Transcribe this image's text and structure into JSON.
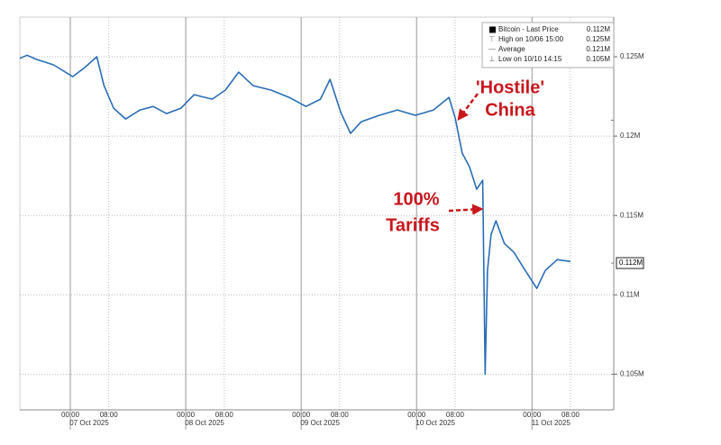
{
  "chart_data": {
    "type": "line",
    "x": [
      "2025-10-06T13:30",
      "2025-10-06T15:00",
      "2025-10-06T17:00",
      "2025-10-06T20:30",
      "2025-10-07T00:30",
      "2025-10-07T03:00",
      "2025-10-07T05:30",
      "2025-10-07T07:00",
      "2025-10-07T09:00",
      "2025-10-07T11:30",
      "2025-10-07T14:30",
      "2025-10-07T17:15",
      "2025-10-07T20:00",
      "2025-10-07T23:00",
      "2025-10-08T01:45",
      "2025-10-08T05:30",
      "2025-10-08T08:15",
      "2025-10-08T11:00",
      "2025-10-08T14:00",
      "2025-10-08T17:45",
      "2025-10-08T21:30",
      "2025-10-09T01:00",
      "2025-10-09T04:00",
      "2025-10-09T06:00",
      "2025-10-09T08:15",
      "2025-10-09T10:15",
      "2025-10-09T12:30",
      "2025-10-09T16:15",
      "2025-10-09T20:00",
      "2025-10-09T23:45",
      "2025-10-10T03:30",
      "2025-10-10T06:45",
      "2025-10-10T08:00",
      "2025-10-10T09:30",
      "2025-10-10T11:00",
      "2025-10-10T12:30",
      "2025-10-10T13:45",
      "2025-10-10T14:15",
      "2025-10-10T14:45",
      "2025-10-10T15:30",
      "2025-10-10T16:30",
      "2025-10-10T18:15",
      "2025-10-10T20:15",
      "2025-10-10T22:00",
      "2025-10-11T01:00",
      "2025-10-11T02:45",
      "2025-10-11T05:15",
      "2025-10-11T08:00"
    ],
    "series": [
      {
        "name": "Bitcoin",
        "color": "#2a6db5",
        "values": [
          124900,
          125100,
          124830,
          124490,
          123750,
          124320,
          125000,
          123180,
          121760,
          121080,
          121650,
          121870,
          121420,
          121760,
          122610,
          122330,
          122900,
          124030,
          123180,
          122900,
          122440,
          121870,
          122330,
          123580,
          121480,
          120170,
          120910,
          121310,
          121650,
          121310,
          121650,
          122440,
          121190,
          118920,
          118070,
          116650,
          117220,
          105000,
          111530,
          113810,
          114660,
          113240,
          112670,
          111820,
          110400,
          111530,
          112220,
          112100
        ]
      }
    ],
    "xlim": [
      "2025-10-06T13:30",
      "2025-10-11T17:00"
    ],
    "xticks": [
      {
        "value": "2025-10-07T00:00",
        "label": "00:00"
      },
      {
        "value": "2025-10-07T08:00",
        "label": "08:00"
      },
      {
        "value": "2025-10-08T00:00",
        "label": "00:00"
      },
      {
        "value": "2025-10-08T08:00",
        "label": "08:00"
      },
      {
        "value": "2025-10-09T00:00",
        "label": "00:00"
      },
      {
        "value": "2025-10-09T08:00",
        "label": "08:00"
      },
      {
        "value": "2025-10-10T00:00",
        "label": "00:00"
      },
      {
        "value": "2025-10-10T08:00",
        "label": "08:00"
      },
      {
        "value": "2025-10-11T00:00",
        "label": "00:00"
      },
      {
        "value": "2025-10-11T08:00",
        "label": "08:00"
      }
    ],
    "days": [
      {
        "value": "2025-10-07T00:00",
        "label": "07 Oct 2025"
      },
      {
        "value": "2025-10-08T00:00",
        "label": "08 Oct 2025"
      },
      {
        "value": "2025-10-09T00:00",
        "label": "09 Oct 2025"
      },
      {
        "value": "2025-10-10T00:00",
        "label": "10 Oct 2025"
      },
      {
        "value": "2025-10-11T00:00",
        "label": "11 Oct 2025"
      }
    ],
    "ylim": [
      102750,
      127500
    ],
    "yticks": [
      {
        "value": 105000,
        "label": "0.105M"
      },
      {
        "value": 110000,
        "label": "0.11M"
      },
      {
        "value": 115000,
        "label": "0.115M"
      },
      {
        "value": 120000,
        "label": "0.12M"
      },
      {
        "value": 125000,
        "label": "0.125M"
      }
    ],
    "y_axis_side": "right",
    "grid": true,
    "legend": [
      {
        "label": "Bitcoin - Last Price",
        "stat": {
          "value": 112000,
          "label": "0.112M"
        }
      },
      {
        "label": "High on 10/06 15:00",
        "stat": {
          "value": 125000,
          "label": "0.125M"
        }
      },
      {
        "label": "Average",
        "stat": {
          "value": 121000,
          "label": "0.121M"
        }
      },
      {
        "label": "Low on 10/10 14:15",
        "stat": {
          "value": 105000,
          "label": "0.105M"
        }
      }
    ],
    "last_price": {
      "value": 112000,
      "label": "0.112M"
    },
    "annotations": [
      {
        "lines": [
          "'Hostile'",
          "China"
        ]
      },
      {
        "lines": [
          "100%",
          "Tariffs"
        ]
      }
    ]
  }
}
